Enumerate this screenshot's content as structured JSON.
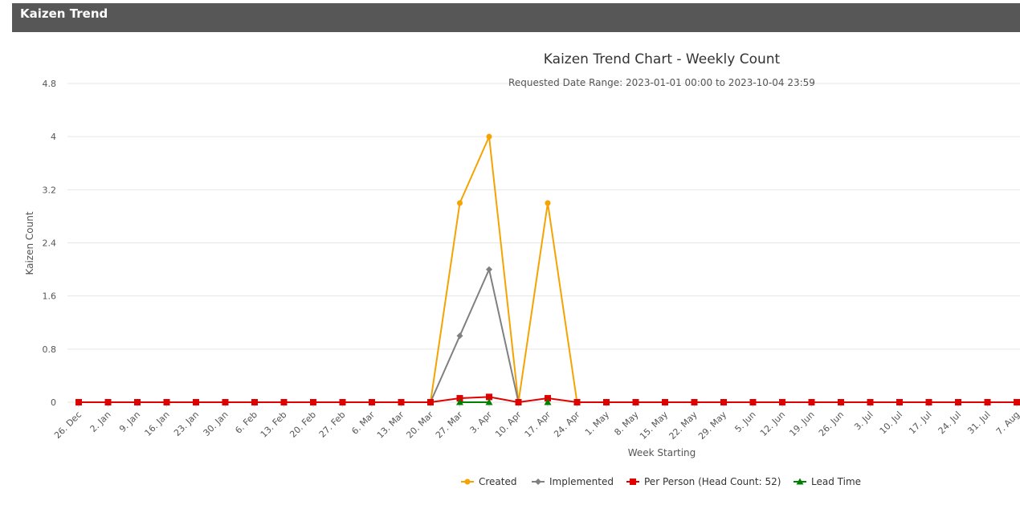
{
  "panel": {
    "title": "Kaizen Trend"
  },
  "chart_data": {
    "type": "line",
    "title": "Kaizen Trend Chart - Weekly Count",
    "subtitle": "Requested Date Range: 2023-01-01 00:00 to 2023-10-04 23:59",
    "xlabel": "Week Starting",
    "ylabel": "Kaizen Count",
    "ylim": [
      0,
      4.8
    ],
    "yticks": [
      "0",
      "0.8",
      "1.6",
      "2.4",
      "3.2",
      "4",
      "4.8"
    ],
    "grid": true,
    "legend_position": "bottom",
    "categories": [
      "26. Dec",
      "2. Jan",
      "9. Jan",
      "16. Jan",
      "23. Jan",
      "30. Jan",
      "6. Feb",
      "13. Feb",
      "20. Feb",
      "27. Feb",
      "6. Mar",
      "13. Mar",
      "20. Mar",
      "27. Mar",
      "3. Apr",
      "10. Apr",
      "17. Apr",
      "24. Apr",
      "1. May",
      "8. May",
      "15. May",
      "22. May",
      "29. May",
      "5. Jun",
      "12. Jun",
      "19. Jun",
      "26. Jun",
      "3. Jul",
      "10. Jul",
      "17. Jul",
      "24. Jul",
      "31. Jul",
      "7. Aug"
    ],
    "series": [
      {
        "name": "Created",
        "color": "#f5a300",
        "marker": "circle",
        "values": [
          null,
          null,
          null,
          null,
          null,
          null,
          null,
          null,
          null,
          null,
          null,
          null,
          0,
          3,
          4,
          0,
          3,
          0,
          null,
          null,
          null,
          null,
          null,
          null,
          null,
          null,
          null,
          null,
          null,
          null,
          null,
          null,
          null
        ]
      },
      {
        "name": "Implemented",
        "color": "#808080",
        "marker": "diamond",
        "values": [
          null,
          null,
          null,
          null,
          null,
          null,
          null,
          null,
          null,
          null,
          null,
          null,
          0,
          1,
          2,
          0,
          null,
          null,
          null,
          null,
          null,
          null,
          null,
          null,
          null,
          null,
          null,
          null,
          null,
          null,
          null,
          null,
          null
        ]
      },
      {
        "name": "Per Person (Head Count: 52)",
        "color": "#e00000",
        "marker": "square",
        "values": [
          0,
          0,
          0,
          0,
          0,
          0,
          0,
          0,
          0,
          0,
          0,
          0,
          0,
          0.06,
          0.08,
          0,
          0.06,
          0,
          0,
          0,
          0,
          0,
          0,
          0,
          0,
          0,
          0,
          0,
          0,
          0,
          0,
          0,
          0
        ]
      },
      {
        "name": "Lead Time",
        "color": "#008000",
        "marker": "triangle",
        "values": [
          null,
          null,
          null,
          null,
          null,
          null,
          null,
          null,
          null,
          null,
          null,
          null,
          null,
          0,
          0,
          null,
          0,
          null,
          null,
          null,
          null,
          null,
          null,
          null,
          null,
          null,
          null,
          null,
          null,
          null,
          null,
          null,
          null
        ]
      }
    ]
  }
}
